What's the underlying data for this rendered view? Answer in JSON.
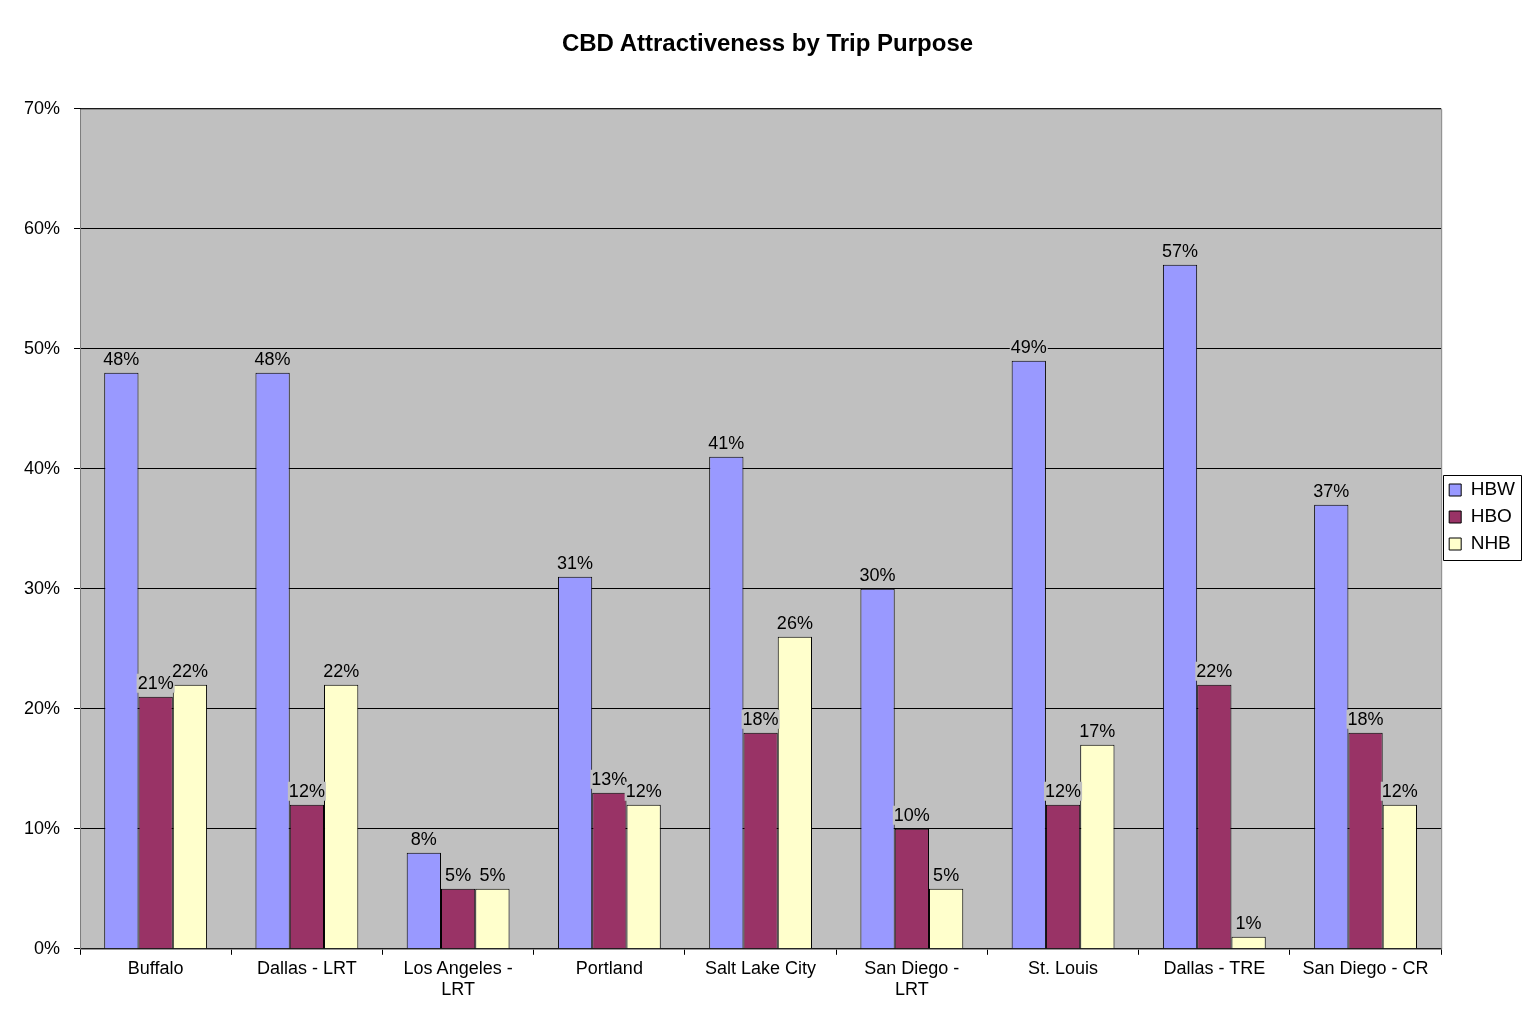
{
  "chart_data": {
    "type": "bar",
    "title": "CBD Attractiveness by Trip Purpose",
    "categories": [
      "Buffalo",
      "Dallas - LRT",
      "Los Angeles - LRT",
      "Portland",
      "Salt Lake City",
      "San Diego - LRT",
      "St. Louis",
      "Dallas - TRE",
      "San Diego - CR"
    ],
    "series": [
      {
        "name": "HBW",
        "color": "#9999ff",
        "values": [
          48,
          48,
          8,
          31,
          41,
          30,
          49,
          57,
          37
        ],
        "value_labels": [
          "48%",
          "48%",
          "8%",
          "31%",
          "41%",
          "30%",
          "49%",
          "57%",
          "37%"
        ]
      },
      {
        "name": "HBO",
        "color": "#993366",
        "values": [
          21,
          12,
          5,
          13,
          18,
          10,
          12,
          22,
          18
        ],
        "value_labels": [
          "21%",
          "12%",
          "5%",
          "13%",
          "18%",
          "10%",
          "12%",
          "22%",
          "18%"
        ]
      },
      {
        "name": "NHB",
        "color": "#ffffcc",
        "values": [
          22,
          22,
          5,
          12,
          26,
          5,
          17,
          1,
          12
        ],
        "value_labels": [
          "22%",
          "22%",
          "5%",
          "12%",
          "26%",
          "5%",
          "17%",
          "1%",
          "12%"
        ]
      }
    ],
    "ylim": [
      0,
      70
    ],
    "yticks": [
      {
        "value": 0,
        "label": "0%"
      },
      {
        "value": 10,
        "label": "10%"
      },
      {
        "value": 20,
        "label": "20%"
      },
      {
        "value": 30,
        "label": "30%"
      },
      {
        "value": 40,
        "label": "40%"
      },
      {
        "value": 50,
        "label": "50%"
      },
      {
        "value": 60,
        "label": "60%"
      },
      {
        "value": 70,
        "label": "70%"
      }
    ],
    "grid": "y",
    "legend": "right"
  }
}
